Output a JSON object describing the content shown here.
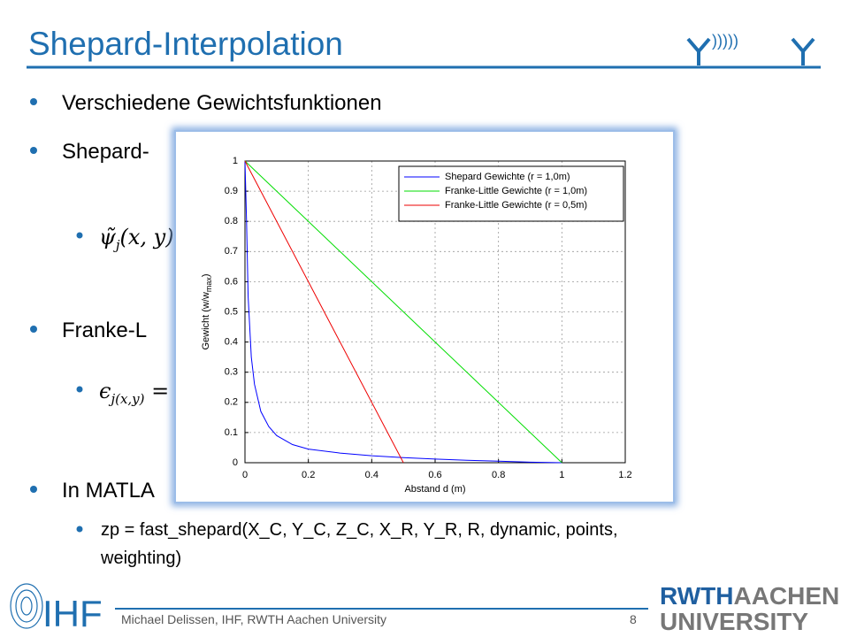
{
  "slide": {
    "title": "Shepard-Interpolation",
    "bullets": [
      "Verschiedene Gewichtsfunktionen",
      "Shepard-",
      "Franke-L",
      "In MATLA"
    ],
    "math1": [
      "ψ̃",
      "j",
      "(x, y)"
    ],
    "math2": [
      "ϵ",
      "j(x,y)",
      " ="
    ],
    "code_lines": [
      "zp = fast_shepard(X_C, Y_C, Z_C, X_R, Y_R, R, dynamic, points,",
      "weighting)"
    ],
    "footer": "Michael Delissen, IHF, RWTH Aachen University",
    "page_number": "8",
    "logo_left": "IHF",
    "logo_right": [
      "RWTH",
      "AACHEN",
      "UNIVERSITY"
    ]
  },
  "chart_data": {
    "type": "line",
    "xlabel": "Abstand d (m)",
    "ylabel": [
      "Gewicht (w/w",
      "max",
      ")"
    ],
    "xlim": [
      0,
      1.2
    ],
    "ylim": [
      0,
      1
    ],
    "xticks": [
      0,
      0.2,
      0.4,
      0.6,
      0.8,
      1,
      1.2
    ],
    "yticks": [
      0,
      0.1,
      0.2,
      0.3,
      0.4,
      0.5,
      0.6,
      0.7,
      0.8,
      0.9,
      1
    ],
    "grid": true,
    "legend": "northeast",
    "series": [
      {
        "name": "Shepard Gewichte (r = 1,0m)",
        "color": "#0000ff",
        "x": [
          0,
          0.005,
          0.01,
          0.02,
          0.03,
          0.05,
          0.075,
          0.1,
          0.15,
          0.2,
          0.3,
          0.4,
          0.5,
          0.6,
          0.7,
          0.8,
          0.9,
          1.0
        ],
        "values": [
          1,
          0.8,
          0.55,
          0.35,
          0.26,
          0.17,
          0.12,
          0.09,
          0.06,
          0.045,
          0.032,
          0.023,
          0.017,
          0.012,
          0.008,
          0.005,
          0.002,
          0
        ]
      },
      {
        "name": "Franke-Little Gewichte (r = 1,0m)",
        "color": "#00dd00",
        "x": [
          0,
          1
        ],
        "values": [
          1,
          0
        ]
      },
      {
        "name": "Franke-Little Gewichte (r = 0,5m)",
        "color": "#ee0000",
        "x": [
          0,
          0.5
        ],
        "values": [
          1,
          0
        ]
      }
    ]
  }
}
